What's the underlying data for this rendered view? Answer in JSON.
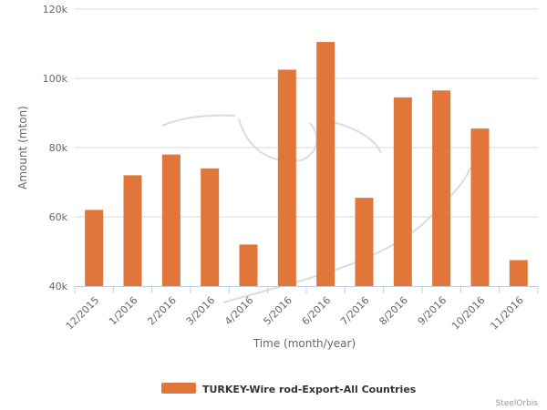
{
  "chart_data": {
    "type": "bar",
    "title": "",
    "xlabel": "Time (month/year)",
    "ylabel": "Amount (mton)",
    "categories": [
      "12/2015",
      "1/2016",
      "2/2016",
      "3/2016",
      "4/2016",
      "5/2016",
      "6/2016",
      "7/2016",
      "8/2016",
      "9/2016",
      "10/2016",
      "11/2016"
    ],
    "series": [
      {
        "name": "TURKEY-Wire rod-Export-All Countries",
        "color": "#e0763a",
        "values": [
          62000,
          72000,
          78000,
          74000,
          52000,
          102500,
          110500,
          65500,
          94500,
          96500,
          85500,
          47500
        ]
      }
    ],
    "ylim": [
      40000,
      120000
    ],
    "yticks": [
      {
        "value": 40000,
        "label": "40k"
      },
      {
        "value": 60000,
        "label": "60k"
      },
      {
        "value": 80000,
        "label": "80k"
      },
      {
        "value": 100000,
        "label": "100k"
      },
      {
        "value": 120000,
        "label": "120k"
      }
    ],
    "grid": true,
    "legend_position": "bottom-center"
  },
  "credit": "SteelOrbis"
}
